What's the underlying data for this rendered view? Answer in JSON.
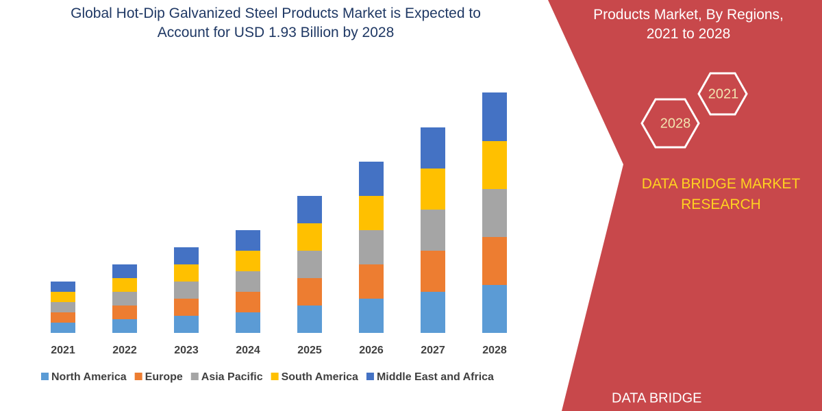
{
  "chart_data": {
    "type": "bar",
    "stacked": true,
    "title": "Global Hot-Dip Galvanized Steel Products Market is Expected to Account for USD 1.93 Billion by 2028",
    "categories": [
      "2021",
      "2022",
      "2023",
      "2024",
      "2025",
      "2026",
      "2027",
      "2028"
    ],
    "series": [
      {
        "name": "North America",
        "color": "#5b9bd5",
        "values": [
          15,
          20,
          25,
          30,
          40,
          50,
          60,
          70
        ]
      },
      {
        "name": "Europe",
        "color": "#ed7d31",
        "values": [
          15,
          20,
          25,
          30,
          40,
          50,
          60,
          70
        ]
      },
      {
        "name": "Asia Pacific",
        "color": "#a5a5a5",
        "values": [
          15,
          20,
          25,
          30,
          40,
          50,
          60,
          70
        ]
      },
      {
        "name": "South America",
        "color": "#ffc000",
        "values": [
          15,
          20,
          25,
          30,
          40,
          50,
          60,
          70
        ]
      },
      {
        "name": "Middle East and Africa",
        "color": "#4472c4",
        "values": [
          15,
          20,
          25,
          30,
          40,
          50,
          60,
          71
        ]
      }
    ]
  },
  "panel": {
    "heading_lines": [
      "Products Market, By Regions,",
      "2021 to 2028"
    ],
    "hexagons": [
      "2021",
      "2028"
    ],
    "brand": "DATA BRIDGE MARKET RESEARCH",
    "logo": "DATA BRIDGE"
  }
}
